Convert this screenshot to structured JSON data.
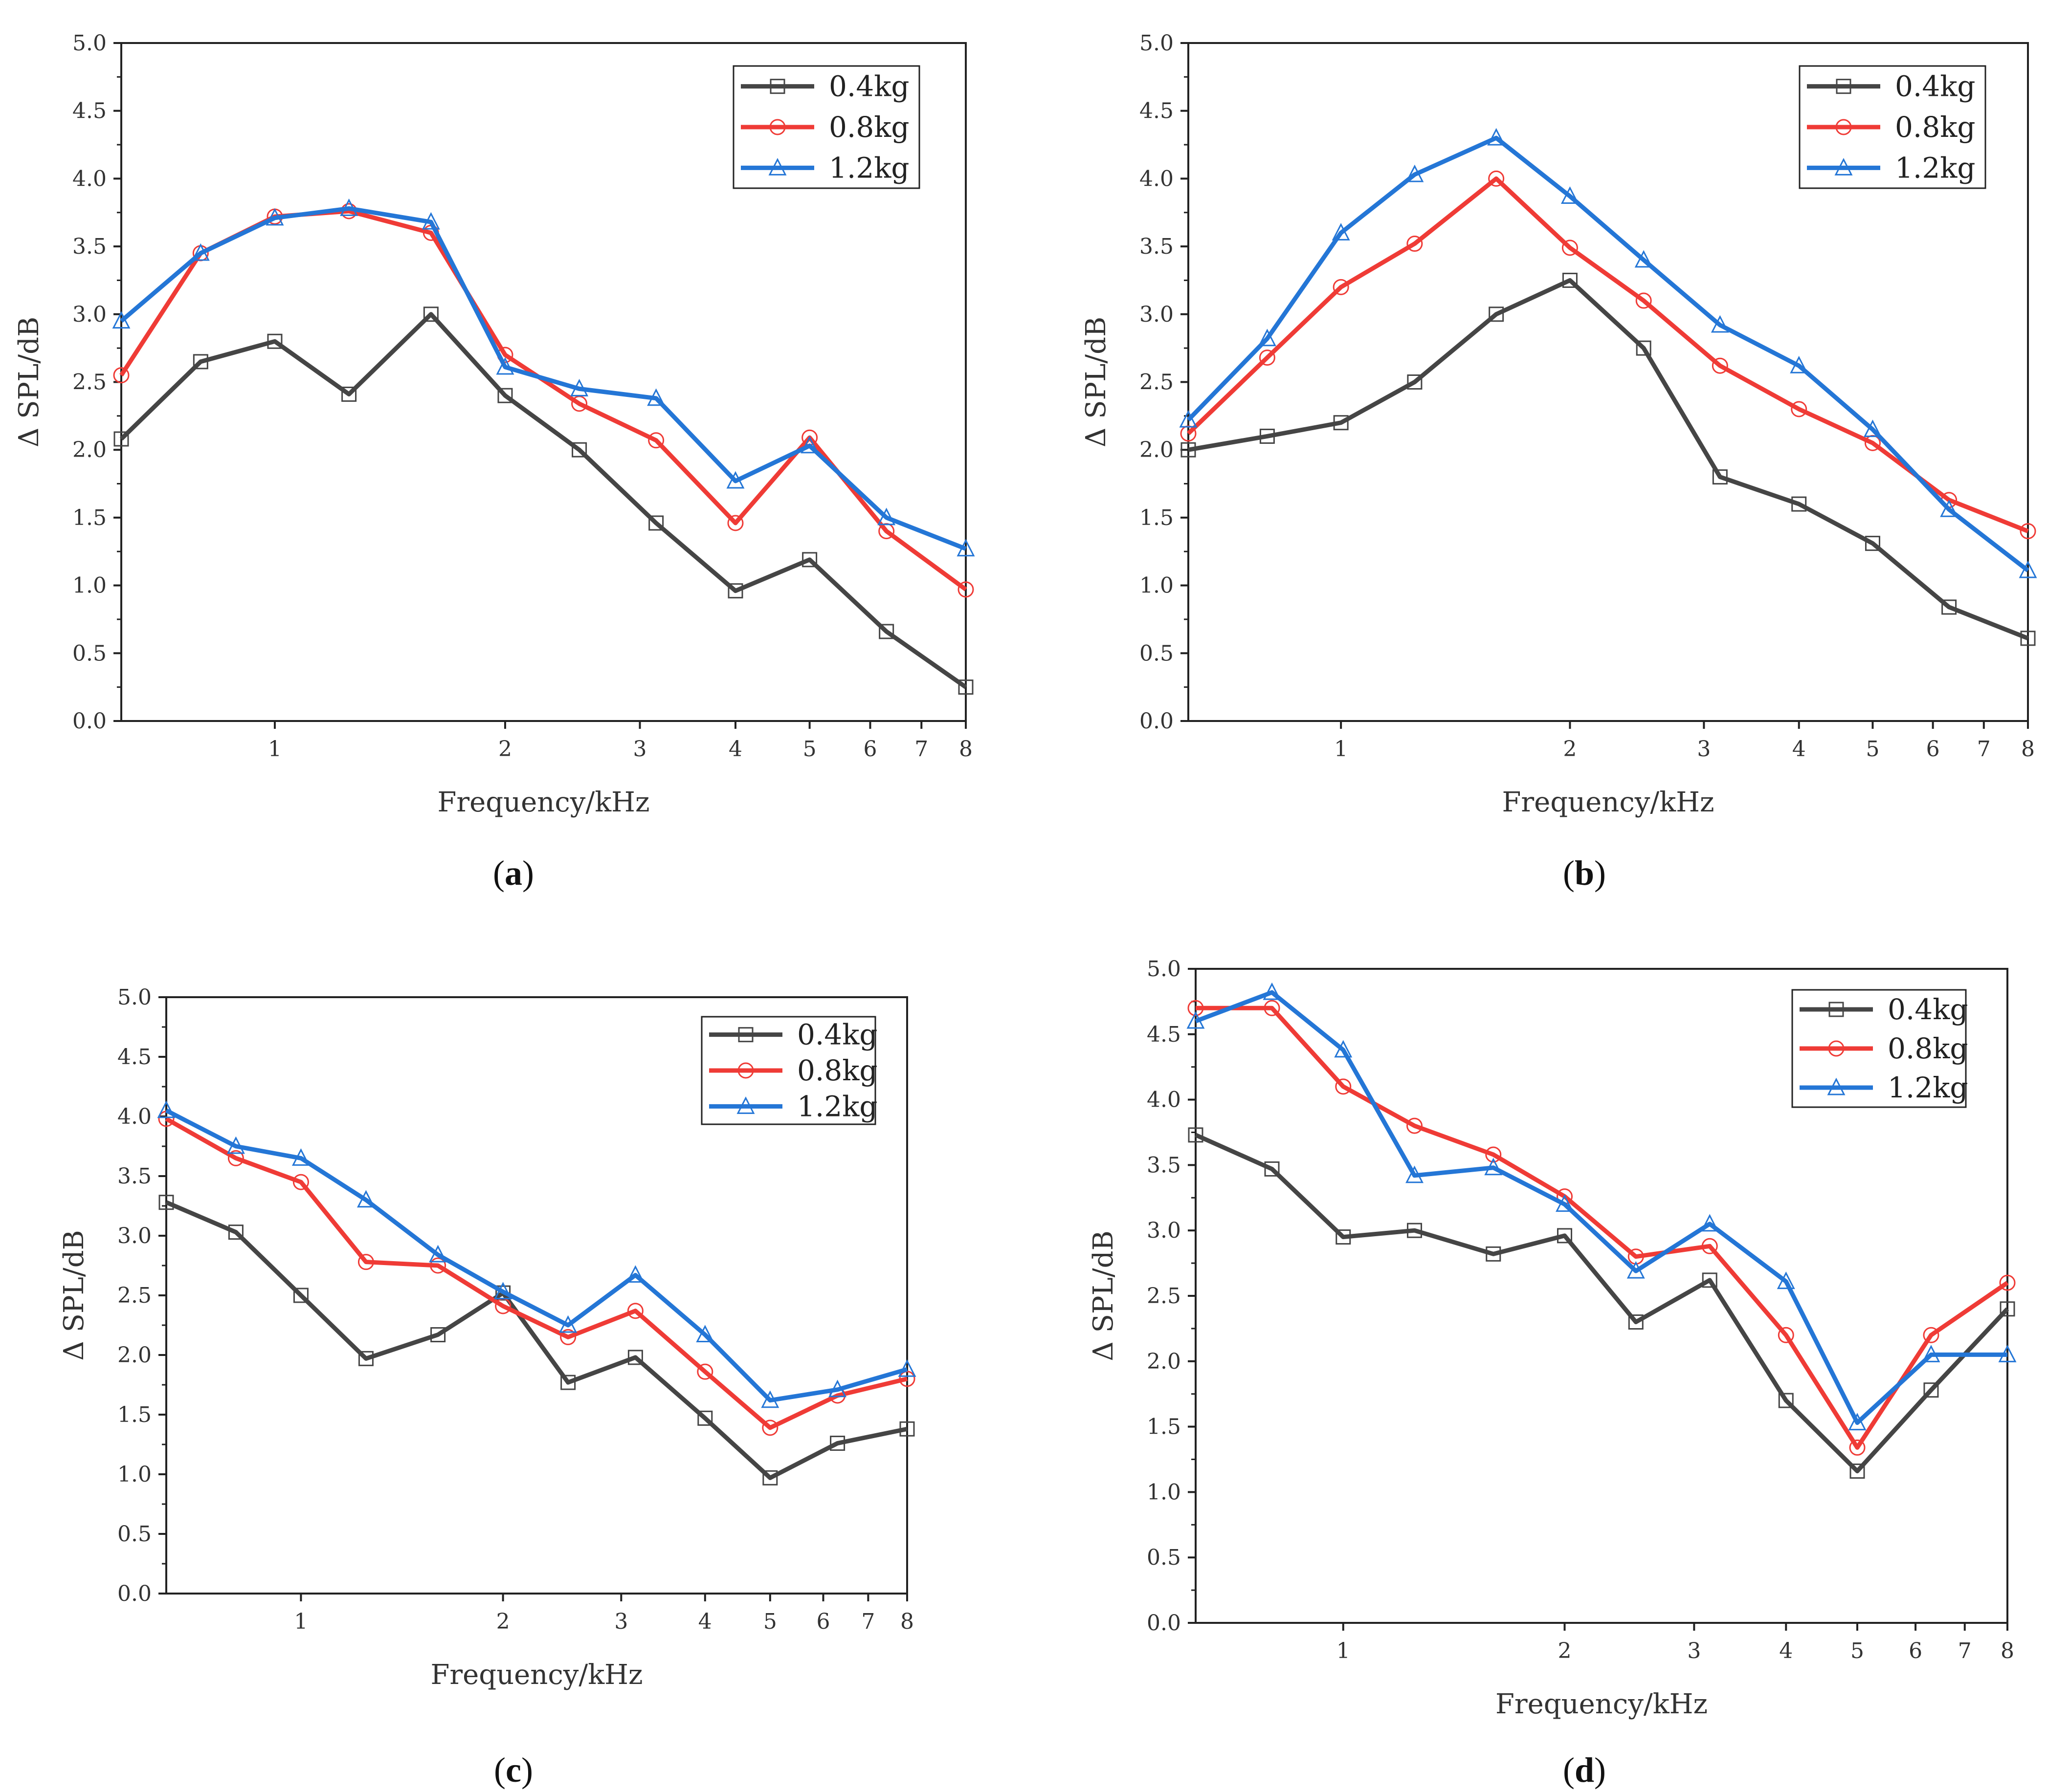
{
  "colors": {
    "0.4kg": "#454545",
    "0.8kg": "#ef3b36",
    "1.2kg": "#2476d6"
  },
  "marker_shapes": {
    "0.4kg": "square",
    "0.8kg": "circle",
    "1.2kg": "triangle"
  },
  "captions": [
    "a",
    "b",
    "c",
    "d"
  ],
  "chart_data": [
    {
      "id": "a",
      "type": "line",
      "xscale": "log",
      "xlabel": "Frequency/kHz",
      "ylabel": "Δ SPL/dB",
      "xlim": [
        0.63,
        8
      ],
      "ylim": [
        0,
        5
      ],
      "x_ticks": [
        1,
        2,
        3,
        4,
        5,
        6,
        7,
        8
      ],
      "y_ticks": [
        "0.0",
        "0.5",
        "1.0",
        "1.5",
        "2.0",
        "2.5",
        "3.0",
        "3.5",
        "4.0",
        "4.5",
        "5.0"
      ],
      "legend_position": "top-right",
      "x": [
        0.63,
        0.8,
        1,
        1.25,
        1.6,
        2,
        2.5,
        3.15,
        4,
        5,
        6.3,
        8
      ],
      "series": [
        {
          "name": "0.4kg",
          "values": [
            2.08,
            2.65,
            2.8,
            2.41,
            3.0,
            2.4,
            2.0,
            1.46,
            0.96,
            1.19,
            0.66,
            0.25
          ]
        },
        {
          "name": "0.8kg",
          "values": [
            2.55,
            3.45,
            3.72,
            3.76,
            3.6,
            2.7,
            2.34,
            2.07,
            1.46,
            2.09,
            1.4,
            0.97
          ]
        },
        {
          "name": "1.2kg",
          "values": [
            2.95,
            3.45,
            3.71,
            3.78,
            3.68,
            2.61,
            2.45,
            2.38,
            1.77,
            2.03,
            1.5,
            1.27
          ]
        }
      ]
    },
    {
      "id": "b",
      "type": "line",
      "xscale": "log",
      "xlabel": "Frequency/kHz",
      "ylabel": "Δ SPL/dB",
      "xlim": [
        0.63,
        8
      ],
      "ylim": [
        0,
        5
      ],
      "x_ticks": [
        1,
        2,
        3,
        4,
        5,
        6,
        7,
        8
      ],
      "y_ticks": [
        "0.0",
        "0.5",
        "1.0",
        "1.5",
        "2.0",
        "2.5",
        "3.0",
        "3.5",
        "4.0",
        "4.5",
        "5.0"
      ],
      "legend_position": "top-right",
      "x": [
        0.63,
        0.8,
        1,
        1.25,
        1.6,
        2,
        2.5,
        3.15,
        4,
        5,
        6.3,
        8
      ],
      "series": [
        {
          "name": "0.4kg",
          "values": [
            2.0,
            2.1,
            2.2,
            2.5,
            3.0,
            3.25,
            2.75,
            1.8,
            1.6,
            1.31,
            0.84,
            0.61
          ]
        },
        {
          "name": "0.8kg",
          "values": [
            2.12,
            2.68,
            3.2,
            3.52,
            4.0,
            3.49,
            3.1,
            2.62,
            2.3,
            2.05,
            1.63,
            1.4
          ]
        },
        {
          "name": "1.2kg",
          "values": [
            2.22,
            2.82,
            3.6,
            4.03,
            4.3,
            3.87,
            3.4,
            2.92,
            2.62,
            2.15,
            1.56,
            1.11
          ]
        }
      ]
    },
    {
      "id": "c",
      "type": "line",
      "xscale": "log",
      "xlabel": "Frequency/kHz",
      "ylabel": "Δ SPL/dB",
      "xlim": [
        0.63,
        8
      ],
      "ylim": [
        0,
        5
      ],
      "x_ticks": [
        1,
        2,
        3,
        4,
        5,
        6,
        7,
        8
      ],
      "y_ticks": [
        "0.0",
        "0.5",
        "1.0",
        "1.5",
        "2.0",
        "2.5",
        "3.0",
        "3.5",
        "4.0",
        "4.5",
        "5.0"
      ],
      "legend_position": "top-right",
      "x": [
        0.63,
        0.8,
        1,
        1.25,
        1.6,
        2,
        2.5,
        3.15,
        4,
        5,
        6.3,
        8
      ],
      "series": [
        {
          "name": "0.4kg",
          "values": [
            3.28,
            3.03,
            2.5,
            1.97,
            2.17,
            2.52,
            1.77,
            1.98,
            1.47,
            0.97,
            1.26,
            1.38
          ]
        },
        {
          "name": "0.8kg",
          "values": [
            3.98,
            3.65,
            3.45,
            2.78,
            2.75,
            2.41,
            2.15,
            2.37,
            1.86,
            1.39,
            1.66,
            1.8
          ]
        },
        {
          "name": "1.2kg",
          "values": [
            4.05,
            3.75,
            3.65,
            3.3,
            2.84,
            2.53,
            2.25,
            2.67,
            2.17,
            1.62,
            1.71,
            1.88
          ]
        }
      ]
    },
    {
      "id": "d",
      "type": "line",
      "xscale": "log",
      "xlabel": "Frequency/kHz",
      "ylabel": "Δ SPL/dB",
      "xlim": [
        0.63,
        8
      ],
      "ylim": [
        0,
        5
      ],
      "x_ticks": [
        1,
        2,
        3,
        4,
        5,
        6,
        7,
        8
      ],
      "y_ticks": [
        "0.0",
        "0.5",
        "1.0",
        "1.5",
        "2.0",
        "2.5",
        "3.0",
        "3.5",
        "4.0",
        "4.5",
        "5.0"
      ],
      "legend_position": "top-right",
      "x": [
        0.63,
        0.8,
        1,
        1.25,
        1.6,
        2,
        2.5,
        3.15,
        4,
        5,
        6.3,
        8
      ],
      "series": [
        {
          "name": "0.4kg",
          "values": [
            3.73,
            3.47,
            2.95,
            3.0,
            2.82,
            2.96,
            2.3,
            2.62,
            1.7,
            1.16,
            1.78,
            2.4
          ]
        },
        {
          "name": "0.8kg",
          "values": [
            4.7,
            4.7,
            4.1,
            3.8,
            3.58,
            3.26,
            2.8,
            2.88,
            2.2,
            1.34,
            2.2,
            2.6
          ]
        },
        {
          "name": "1.2kg",
          "values": [
            4.6,
            4.82,
            4.38,
            3.42,
            3.48,
            3.2,
            2.69,
            3.05,
            2.61,
            1.53,
            2.05,
            2.05
          ]
        }
      ]
    }
  ]
}
